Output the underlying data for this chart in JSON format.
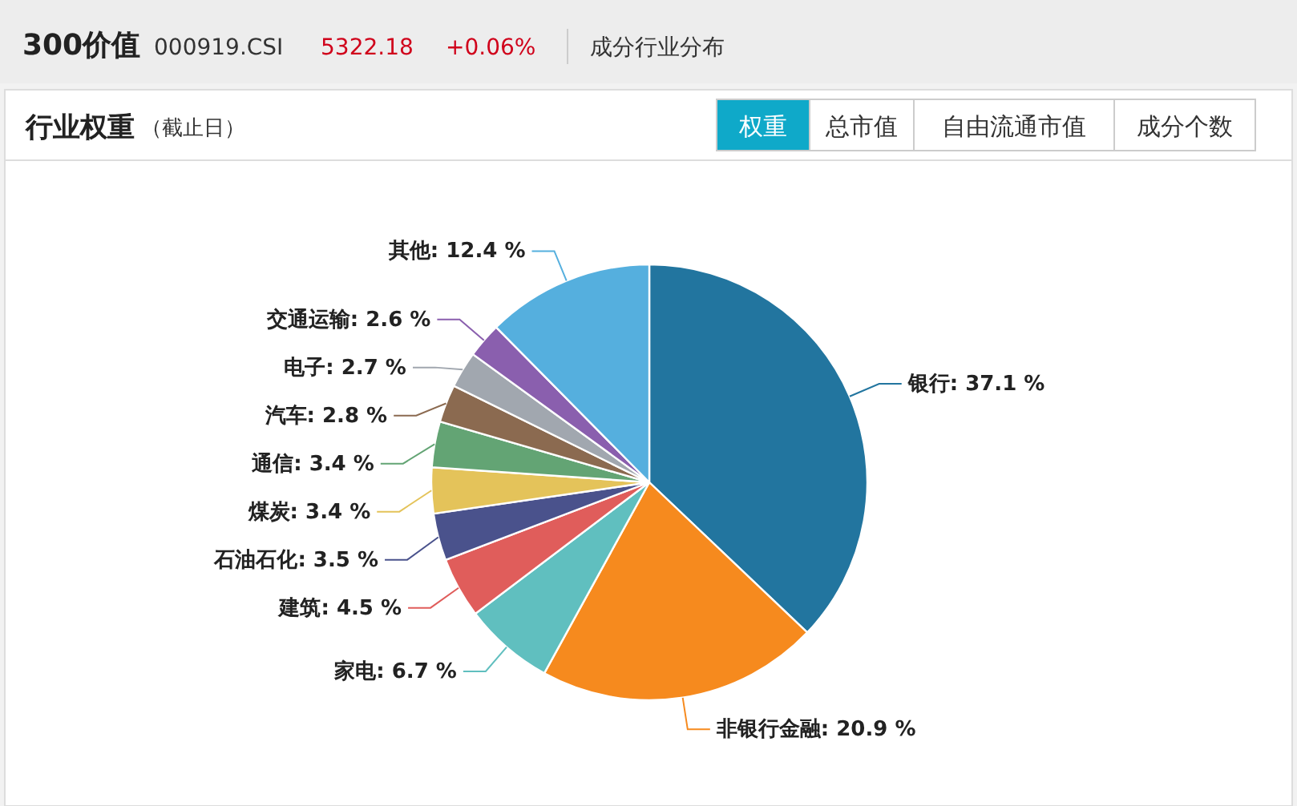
{
  "chart_data": {
    "type": "pie",
    "title": "行业权重",
    "subtitle": "（截止日）",
    "annotations": [
      "300价值",
      "000919.CSI",
      "5322.18",
      "+0.06%",
      "成分行业分布",
      "权重",
      "总市值",
      "自由流通市值",
      "成分个数"
    ],
    "categories": [
      "银行",
      "非银行金融",
      "家电",
      "建筑",
      "石油石化",
      "煤炭",
      "通信",
      "汽车",
      "电子",
      "交通运输",
      "其他"
    ],
    "values": [
      37.1,
      20.9,
      6.7,
      4.5,
      3.5,
      3.4,
      3.4,
      2.8,
      2.7,
      2.6,
      12.4
    ],
    "value_labels": [
      "37.1 %",
      "20.9 %",
      "6.7 %",
      "4.5 %",
      "3.5 %",
      "3.4 %",
      "3.4 %",
      "2.8 %",
      "2.7 %",
      "2.6 %",
      "12.4 %"
    ],
    "colors": [
      "#22759f",
      "#f68a1e",
      "#60bfbf",
      "#e05d5b",
      "#4a528c",
      "#e4c35a",
      "#63a474",
      "#8b6a50",
      "#a1a7af",
      "#8a5fae",
      "#55afde"
    ],
    "legend": false
  }
}
